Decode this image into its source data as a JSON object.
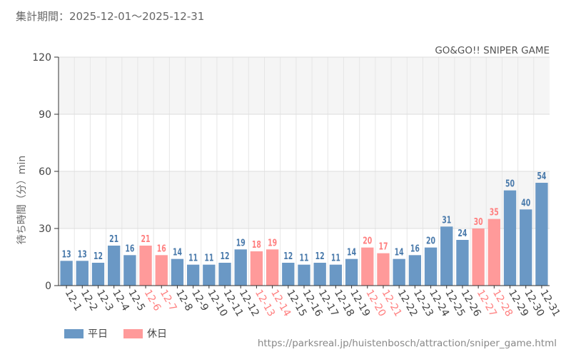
{
  "period_label": "集計期間：2025-12-01～2025-12-31",
  "source_url": "https://parksreal.jp/huistenbosch/attraction/sniper_game.html",
  "colors": {
    "weekday": "#6a98c5",
    "holiday": "#ff9a9a",
    "weekday_text": "#4a7aab",
    "holiday_text": "#ff7f7f"
  },
  "chart_data": {
    "type": "bar",
    "title": "GO&GO!! SNIPER GAME",
    "ylabel": "待ち時間（分）min",
    "ylim": [
      0,
      120
    ],
    "yticks": [
      0,
      30,
      60,
      90,
      120
    ],
    "categories": [
      "12-1",
      "12-2",
      "12-3",
      "12-4",
      "12-5",
      "12-6",
      "12-7",
      "12-8",
      "12-9",
      "12-10",
      "12-11",
      "12-12",
      "12-13",
      "12-14",
      "12-15",
      "12-16",
      "12-17",
      "12-18",
      "12-19",
      "12-20",
      "12-21",
      "12-22",
      "12-23",
      "12-24",
      "12-25",
      "12-26",
      "12-27",
      "12-28",
      "12-29",
      "12-30",
      "12-31"
    ],
    "values": [
      13,
      13,
      12,
      21,
      16,
      21,
      16,
      14,
      11,
      11,
      12,
      19,
      18,
      19,
      12,
      11,
      12,
      11,
      14,
      20,
      17,
      14,
      16,
      20,
      31,
      24,
      30,
      35,
      50,
      40,
      54
    ],
    "day_type": [
      "weekday",
      "weekday",
      "weekday",
      "weekday",
      "weekday",
      "holiday",
      "holiday",
      "weekday",
      "weekday",
      "weekday",
      "weekday",
      "weekday",
      "holiday",
      "holiday",
      "weekday",
      "weekday",
      "weekday",
      "weekday",
      "weekday",
      "holiday",
      "holiday",
      "weekday",
      "weekday",
      "weekday",
      "weekday",
      "weekday",
      "holiday",
      "holiday",
      "weekday",
      "weekday",
      "weekday"
    ],
    "legend": [
      {
        "key": "weekday",
        "label": "平日"
      },
      {
        "key": "holiday",
        "label": "休日"
      }
    ]
  }
}
